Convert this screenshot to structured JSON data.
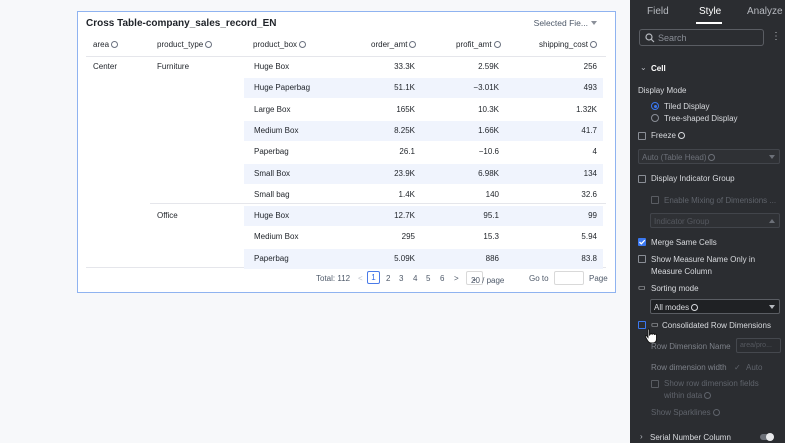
{
  "card": {
    "title": "Cross Table-company_sales_record_EN",
    "selected_fields": "Selected Fie..."
  },
  "table": {
    "headers": [
      "area",
      "product_type",
      "product_box",
      "order_amt",
      "profit_amt",
      "shipping_cost"
    ],
    "area": "Center",
    "groups": [
      {
        "type": "Furniture",
        "rows": [
          {
            "box": "Huge Box",
            "order": "33.3K",
            "profit": "2.59K",
            "ship": "256"
          },
          {
            "box": "Huge Paperbag",
            "order": "51.1K",
            "profit": "−3.01K",
            "ship": "493"
          },
          {
            "box": "Large Box",
            "order": "165K",
            "profit": "10.3K",
            "ship": "1.32K"
          },
          {
            "box": "Medium Box",
            "order": "8.25K",
            "profit": "1.66K",
            "ship": "41.7"
          },
          {
            "box": "Paperbag",
            "order": "26.1",
            "profit": "−10.6",
            "ship": "4"
          },
          {
            "box": "Small Box",
            "order": "23.9K",
            "profit": "6.98K",
            "ship": "134"
          },
          {
            "box": "Small bag",
            "order": "1.4K",
            "profit": "140",
            "ship": "32.6"
          }
        ]
      },
      {
        "type": "Office",
        "rows": [
          {
            "box": "Huge Box",
            "order": "12.7K",
            "profit": "95.1",
            "ship": "99"
          },
          {
            "box": "Medium Box",
            "order": "295",
            "profit": "15.3",
            "ship": "5.94"
          },
          {
            "box": "Paperbag",
            "order": "5.09K",
            "profit": "886",
            "ship": "83.8"
          }
        ]
      }
    ]
  },
  "pagination": {
    "total": "Total: 112",
    "prev": "<",
    "pages": [
      "1",
      "2",
      "3",
      "4",
      "5",
      "6"
    ],
    "next": ">",
    "page_size": "20 / page",
    "goto": "Go to",
    "page": "Page"
  },
  "panel": {
    "tabs": [
      "Field",
      "Style",
      "Analyze"
    ],
    "active_tab": "Style",
    "search_placeholder": "Search",
    "section_cell": "Cell",
    "display_mode": "Display Mode",
    "tiled": "Tiled Display",
    "tree": "Tree-shaped Display",
    "freeze": "Freeze",
    "freeze_select": "Auto (Table Head)",
    "display_indicator_group": "Display Indicator Group",
    "enable_mixing": "Enable Mixing of Dimensions ...",
    "indicator_group": "Indicator Group",
    "merge_same_cells": "Merge Same Cells",
    "show_measure_1": "Show Measure Name Only in",
    "show_measure_2": "Measure Column",
    "sorting_mode": "Sorting mode",
    "all_modes": "All modes",
    "consolidated": "Consolidated Row Dimensions",
    "row_dim_name": "Row Dimension Name",
    "row_dim_placeholder": "area/pro...",
    "row_dim_width": "Row dimension width",
    "auto": "Auto",
    "show_row_fields_1": "Show row dimension fields",
    "show_row_fields_2": "within data",
    "show_sparklines": "Show Sparklines",
    "serial_number_column": "Serial Number Column"
  },
  "colors": {
    "accent": "#3b78f0",
    "panel_bg": "#2b2d31",
    "alt_row": "#f0f4fd"
  }
}
